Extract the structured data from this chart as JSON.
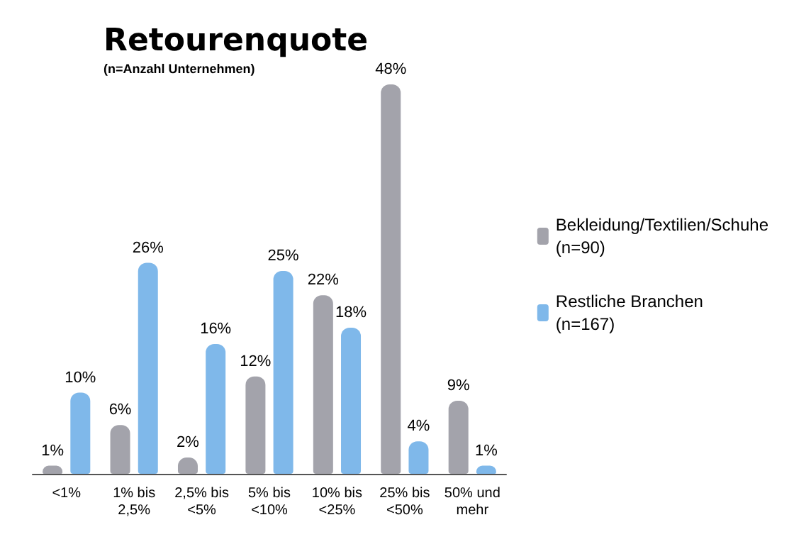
{
  "chart_data": {
    "type": "bar",
    "title": "Retourenquote",
    "subtitle": "(n=Anzahl Unternehmen)",
    "categories": [
      "<1%",
      "1% bis\n2,5%",
      "2,5% bis\n<5%",
      "5% bis\n<10%",
      "10% bis\n<25%",
      "25% bis\n<50%",
      "50% und\nmehr"
    ],
    "series": [
      {
        "name": "Bekleidung/Textilien/Schuhe\n(n=90)",
        "color": "#a3a3ab",
        "values": [
          1,
          6,
          2,
          12,
          22,
          48,
          9
        ],
        "value_labels": [
          "1%",
          "6%",
          "2%",
          "12%",
          "22%",
          "48%",
          "9%"
        ]
      },
      {
        "name": "Restliche Branchen\n(n=167)",
        "color": "#7fb8ea",
        "values": [
          10,
          26,
          16,
          25,
          18,
          4,
          1
        ],
        "value_labels": [
          "10%",
          "26%",
          "16%",
          "25%",
          "18%",
          "4%",
          "1%"
        ]
      }
    ],
    "legend": "right",
    "grid": false
  }
}
